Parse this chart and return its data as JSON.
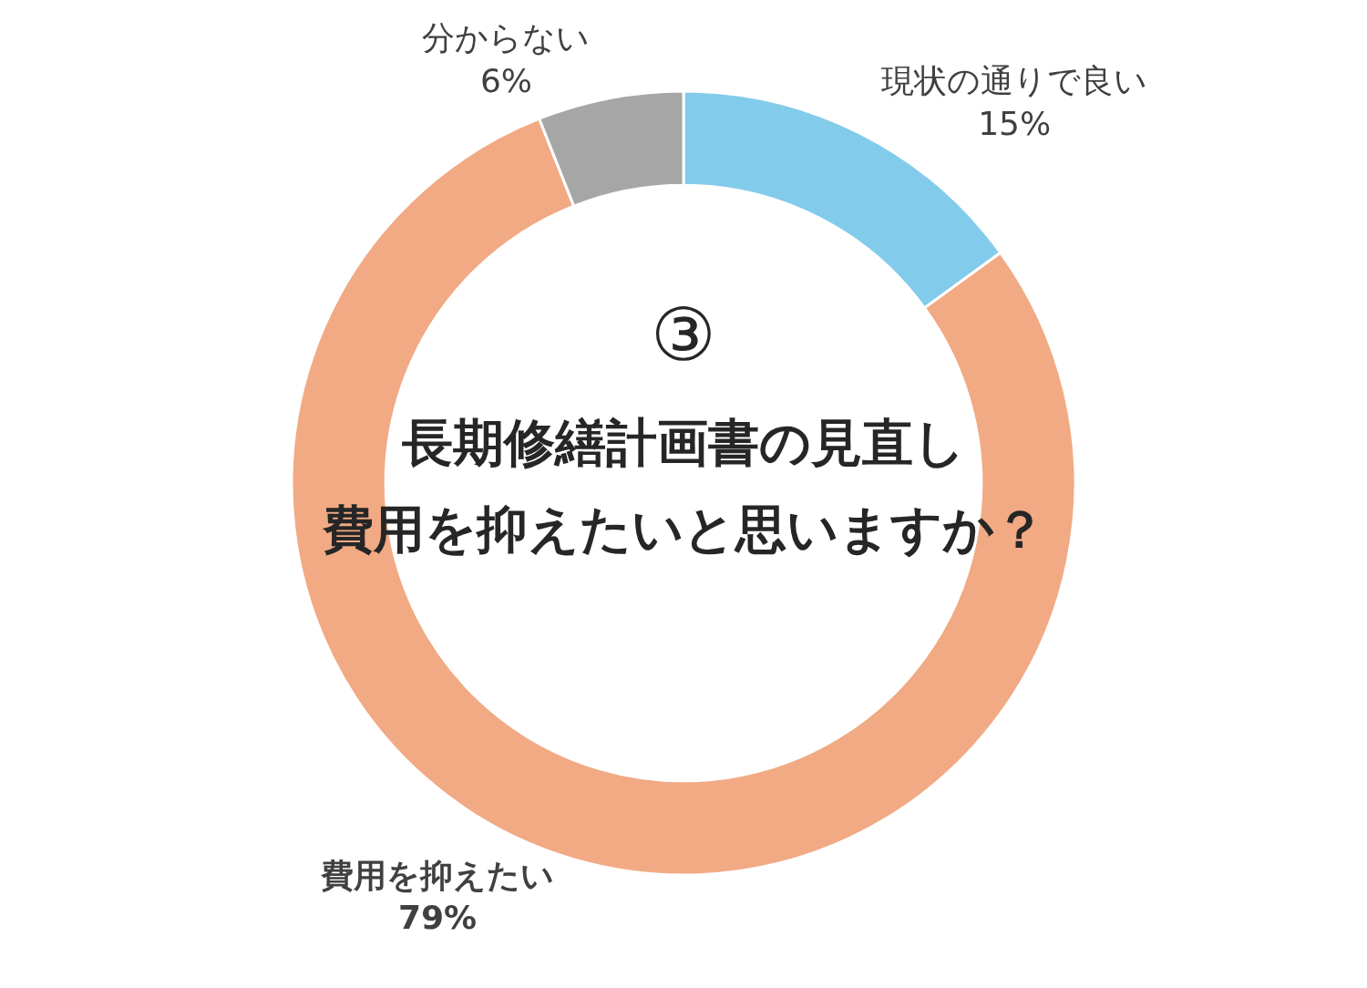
{
  "chart_data": {
    "type": "donut",
    "title": "長期修繕計画書の見直し",
    "subtitle": "費用を抑えたいと思いますか？",
    "annotations": [
      "③"
    ],
    "categories": [
      "現状の通りで良い",
      "費用を抑えたい",
      "分からない"
    ],
    "values": [
      15,
      79,
      6
    ],
    "value_labels": [
      "15%",
      "79%",
      "6%"
    ],
    "colors": [
      "#83cbeb",
      "#f1aa84",
      "#a6a6a6"
    ]
  }
}
